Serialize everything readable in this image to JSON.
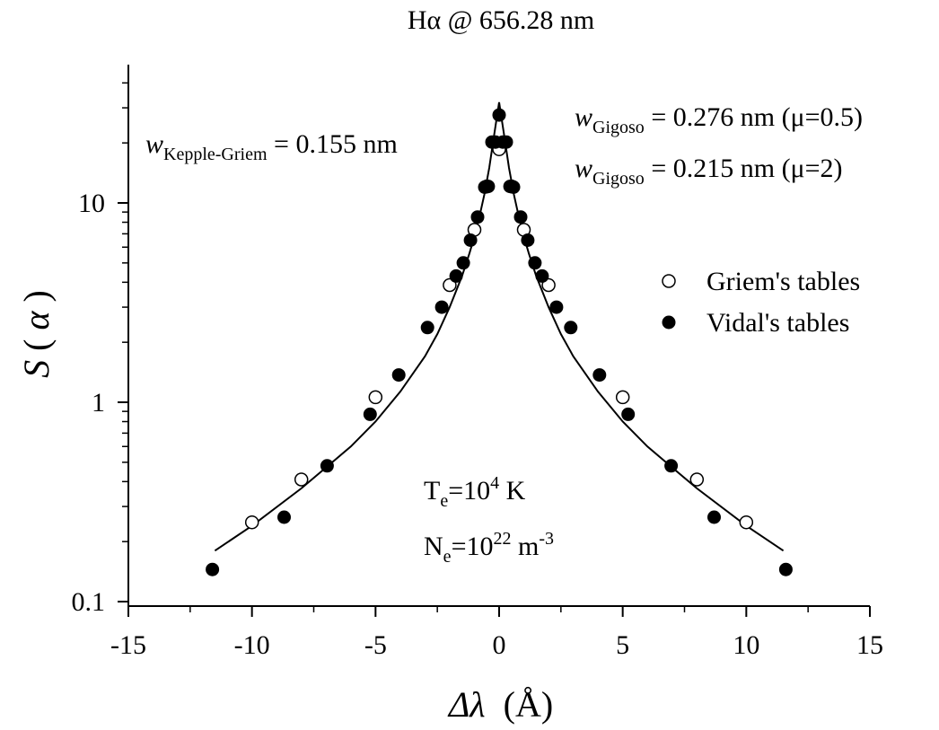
{
  "chart_data": {
    "type": "scatter",
    "title": "Hα @ 656.28 nm",
    "xlabel_main": "Δλ",
    "xlabel_unit": "(Å)",
    "ylabel_main": "S",
    "ylabel_paren_open": "(",
    "ylabel_var": "α",
    "ylabel_paren_close": ")",
    "xlim": [
      -15,
      15
    ],
    "ylim": [
      0.1,
      40
    ],
    "yscale": "log",
    "grid": false,
    "legend_position": "right",
    "x_ticks": [
      {
        "value": -15,
        "label": "-15"
      },
      {
        "value": -10,
        "label": "-10"
      },
      {
        "value": -5,
        "label": "-5"
      },
      {
        "value": 0,
        "label": "0"
      },
      {
        "value": 5,
        "label": "5"
      },
      {
        "value": 10,
        "label": "10"
      },
      {
        "value": 15,
        "label": "15"
      }
    ],
    "y_ticks": [
      {
        "value": 0.1,
        "label": "0.1"
      },
      {
        "value": 1,
        "label": "1"
      },
      {
        "value": 10,
        "label": "10"
      }
    ],
    "series": [
      {
        "name": "Griem's tables",
        "marker": "open-circle",
        "x": [
          -10,
          -8,
          -5,
          -2,
          -1,
          -0.5,
          0,
          0.5,
          1,
          2,
          5,
          8,
          10
        ],
        "y": [
          0.25,
          0.41,
          1.06,
          3.87,
          7.33,
          12.1,
          18.6,
          12.1,
          7.33,
          3.87,
          1.06,
          0.41,
          0.25
        ]
      },
      {
        "name": "Vidal's tables",
        "marker": "filled-circle",
        "x": [
          -11.6,
          -8.7,
          -6.96,
          -5.22,
          -4.06,
          -2.9,
          -2.32,
          -1.74,
          -1.45,
          -1.16,
          -0.87,
          -0.58,
          -0.44,
          -0.29,
          -0.15,
          0,
          0.15,
          0.29,
          0.44,
          0.58,
          0.87,
          1.16,
          1.45,
          1.74,
          2.32,
          2.9,
          4.06,
          5.22,
          6.96,
          8.7,
          11.6
        ],
        "y": [
          0.145,
          0.265,
          0.48,
          0.87,
          1.37,
          2.37,
          3.0,
          4.3,
          5.0,
          6.5,
          8.5,
          12.0,
          12.1,
          20.2,
          20.2,
          27.6,
          20.2,
          20.2,
          12.1,
          12.0,
          8.5,
          6.5,
          5.0,
          4.3,
          3.0,
          2.37,
          1.37,
          0.87,
          0.48,
          0.265,
          0.145
        ]
      }
    ],
    "fit_curve": {
      "type": "line",
      "x": [
        -11.5,
        -10,
        -8,
        -6,
        -5,
        -4,
        -3,
        -2.5,
        -2,
        -1.5,
        -1.2,
        -1,
        -0.8,
        -0.6,
        -0.4,
        -0.2,
        0,
        0.2,
        0.4,
        0.6,
        0.8,
        1,
        1.2,
        1.5,
        2,
        2.5,
        3,
        4,
        5,
        6,
        8,
        10,
        11.5
      ],
      "y": [
        0.18,
        0.24,
        0.37,
        0.6,
        0.8,
        1.13,
        1.7,
        2.2,
        3.0,
        4.3,
        5.6,
        6.8,
        8.5,
        11.0,
        15.0,
        22.0,
        32.0,
        22.0,
        15.0,
        11.0,
        8.5,
        6.8,
        5.6,
        4.3,
        3.0,
        2.2,
        1.7,
        1.13,
        0.8,
        0.6,
        0.37,
        0.24,
        0.18
      ]
    },
    "annotations": {
      "kepple_w": "w",
      "kepple_sub": "Kepple-Griem",
      "kepple_rest": " = 0.155 nm",
      "gigoso1_w": "w",
      "gigoso1_sub": "Gigoso",
      "gigoso1_rest": " = 0.276 nm (μ=0.5)",
      "gigoso2_w": "w",
      "gigoso2_sub": "Gigoso",
      "gigoso2_rest": " = 0.215 nm (μ=2)",
      "te_T": "T",
      "te_sub": "e",
      "te_mid": "=10",
      "te_sup": "4",
      "te_unit": " K",
      "ne_N": "N",
      "ne_sub": "e",
      "ne_mid": "=10",
      "ne_sup": "22",
      "ne_unit": " m",
      "ne_unit_sup": "-3"
    }
  }
}
